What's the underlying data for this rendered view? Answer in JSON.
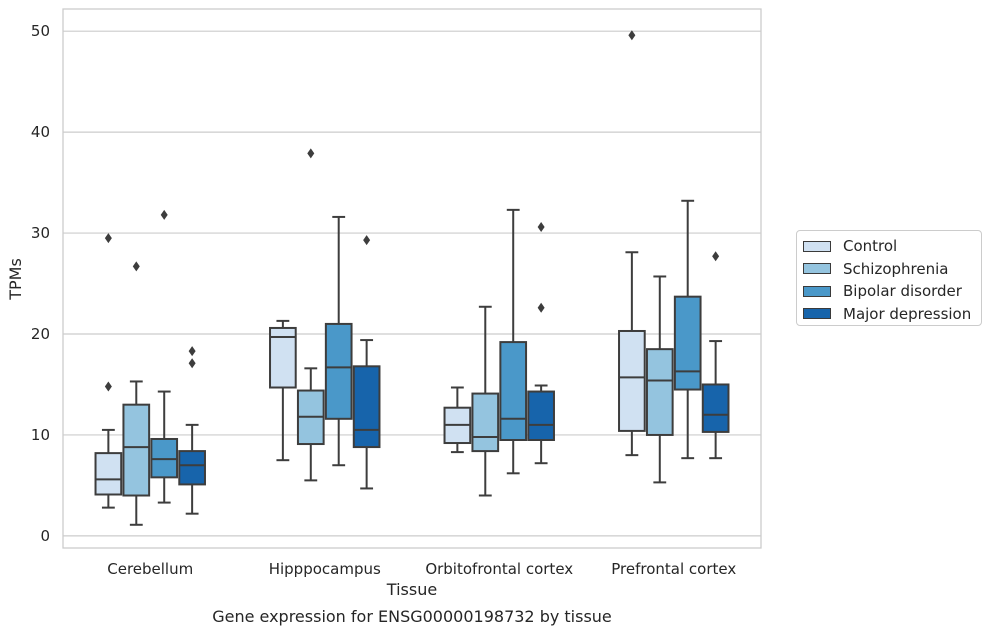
{
  "chart_data": {
    "type": "box",
    "caption": "Gene expression for ENSG00000198732 by tissue",
    "xlabel": "Tissue",
    "ylabel": "TPMs",
    "ylim": [
      -1.2,
      52.2
    ],
    "yticks": [
      0,
      10,
      20,
      30,
      40,
      50
    ],
    "grid": true,
    "legend_position": "right",
    "categories": [
      "Cerebellum",
      "Hipppocampus",
      "Orbitofrontal cortex",
      "Prefrontal cortex"
    ],
    "series": [
      {
        "name": "Control",
        "color": "#d0e1f2",
        "boxes": [
          {
            "whislo": 2.8,
            "q1": 4.1,
            "med": 5.6,
            "q3": 8.2,
            "whishi": 10.5,
            "fliers": [
              29.5,
              14.8
            ]
          },
          {
            "whislo": 7.5,
            "q1": 14.7,
            "med": 19.7,
            "q3": 20.6,
            "whishi": 21.3,
            "fliers": []
          },
          {
            "whislo": 8.3,
            "q1": 9.2,
            "med": 11.0,
            "q3": 12.7,
            "whishi": 14.7,
            "fliers": []
          },
          {
            "whislo": 8.0,
            "q1": 10.4,
            "med": 15.7,
            "q3": 20.3,
            "whishi": 28.1,
            "fliers": [
              49.6
            ]
          }
        ]
      },
      {
        "name": "Schizophrenia",
        "color": "#94c4df",
        "boxes": [
          {
            "whislo": 1.1,
            "q1": 4.0,
            "med": 8.8,
            "q3": 13.0,
            "whishi": 15.3,
            "fliers": [
              26.7
            ]
          },
          {
            "whislo": 5.5,
            "q1": 9.1,
            "med": 11.8,
            "q3": 14.4,
            "whishi": 16.6,
            "fliers": [
              37.9
            ]
          },
          {
            "whislo": 4.0,
            "q1": 8.4,
            "med": 9.8,
            "q3": 14.1,
            "whishi": 22.7,
            "fliers": []
          },
          {
            "whislo": 5.3,
            "q1": 10.0,
            "med": 15.4,
            "q3": 18.5,
            "whishi": 25.7,
            "fliers": []
          }
        ]
      },
      {
        "name": "Bipolar disorder",
        "color": "#4a98c9",
        "boxes": [
          {
            "whislo": 3.3,
            "q1": 5.8,
            "med": 7.6,
            "q3": 9.6,
            "whishi": 14.3,
            "fliers": [
              31.8
            ]
          },
          {
            "whislo": 7.0,
            "q1": 11.6,
            "med": 16.7,
            "q3": 21.0,
            "whishi": 31.6,
            "fliers": []
          },
          {
            "whislo": 6.2,
            "q1": 9.5,
            "med": 11.6,
            "q3": 19.2,
            "whishi": 32.3,
            "fliers": []
          },
          {
            "whislo": 7.7,
            "q1": 14.5,
            "med": 16.3,
            "q3": 23.7,
            "whishi": 33.2,
            "fliers": []
          }
        ]
      },
      {
        "name": "Major depression",
        "color": "#1764ab",
        "boxes": [
          {
            "whislo": 2.2,
            "q1": 5.1,
            "med": 7.0,
            "q3": 8.4,
            "whishi": 11.0,
            "fliers": [
              18.3,
              17.1
            ]
          },
          {
            "whislo": 4.7,
            "q1": 8.8,
            "med": 10.5,
            "q3": 16.8,
            "whishi": 19.4,
            "fliers": [
              29.3
            ]
          },
          {
            "whislo": 7.2,
            "q1": 9.5,
            "med": 11.0,
            "q3": 14.3,
            "whishi": 14.9,
            "fliers": [
              30.6,
              22.6
            ]
          },
          {
            "whislo": 7.7,
            "q1": 10.3,
            "med": 12.0,
            "q3": 15.0,
            "whishi": 19.3,
            "fliers": [
              27.7
            ]
          }
        ]
      }
    ]
  }
}
